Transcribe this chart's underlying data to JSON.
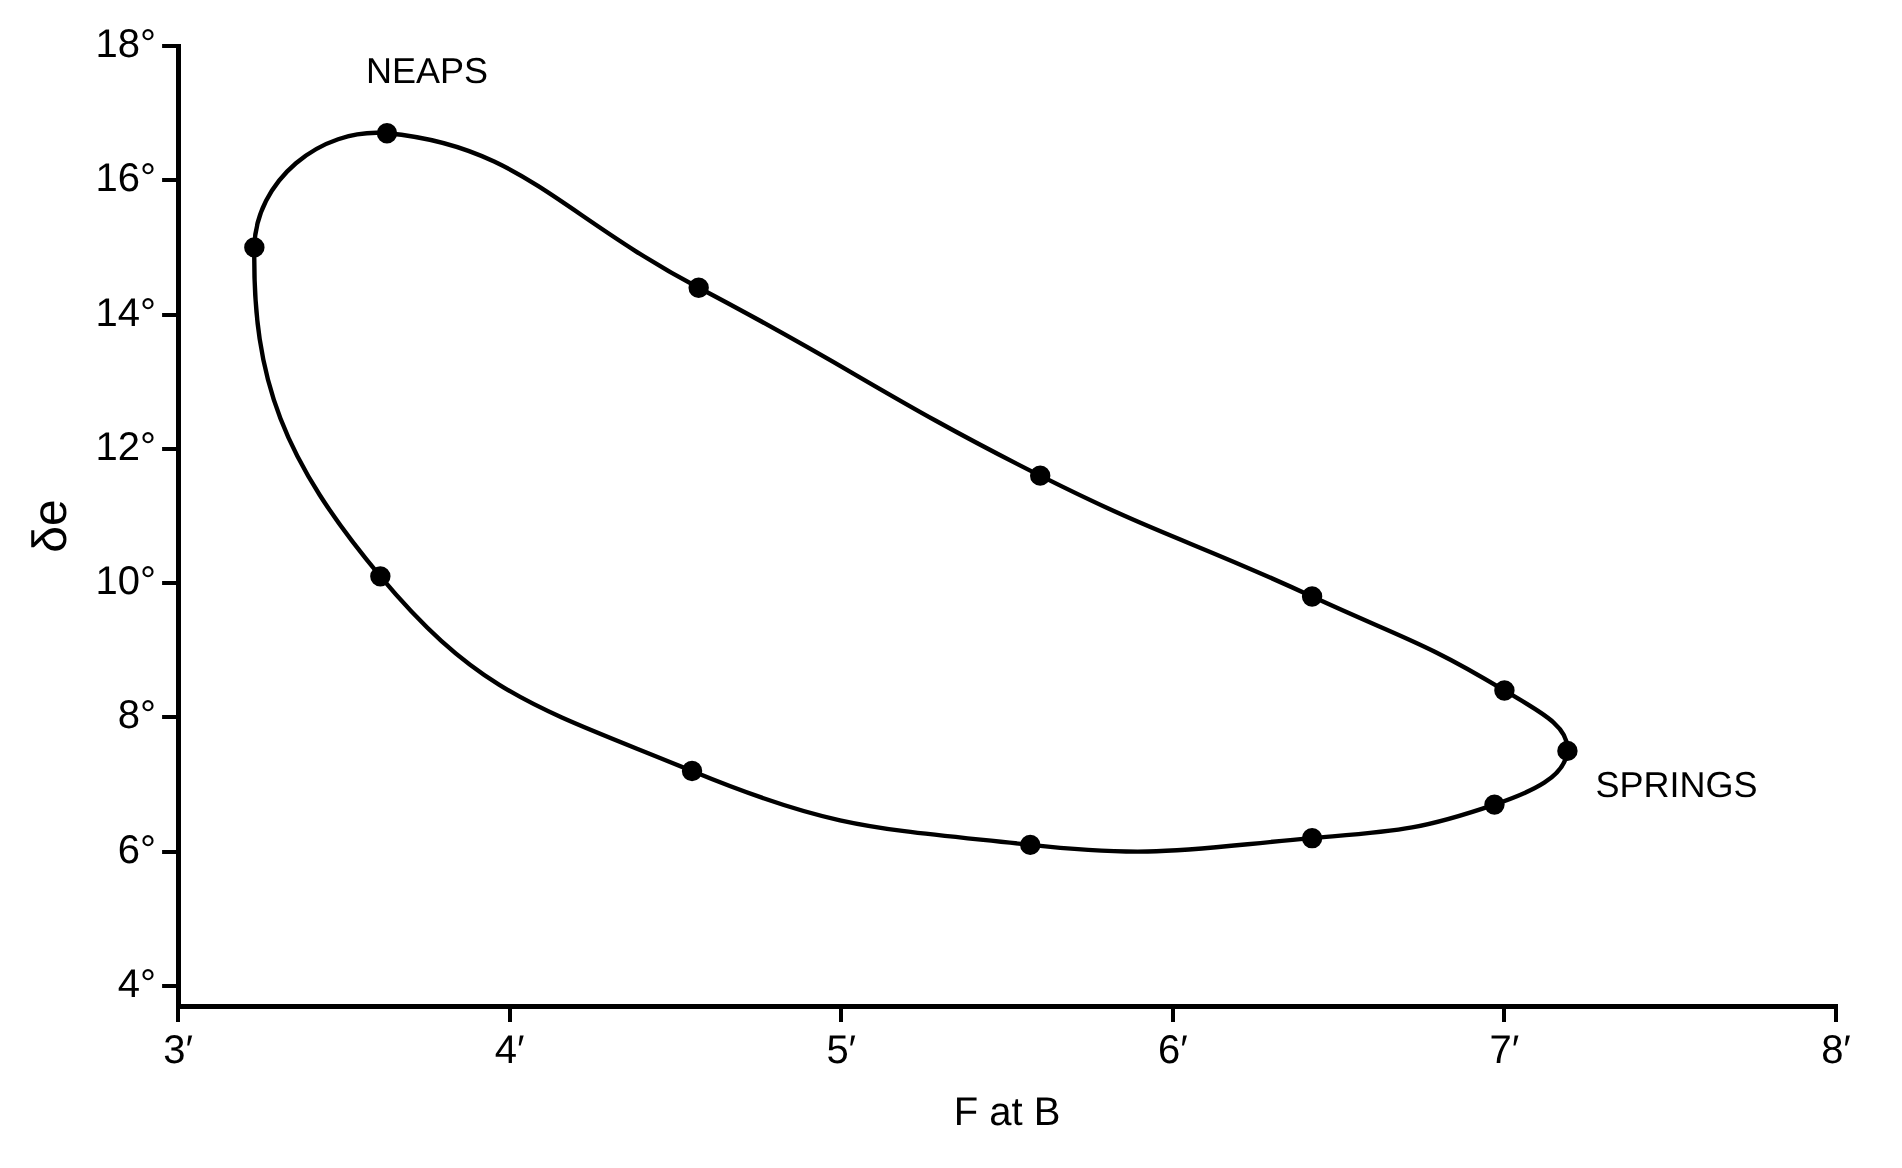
{
  "chart_data": {
    "type": "scatter",
    "xlabel": "F at B",
    "ylabel": "δe",
    "x": [
      3.23,
      3.63,
      4.57,
      5.6,
      6.42,
      7.0,
      7.19,
      6.97,
      6.42,
      5.57,
      4.55,
      3.61
    ],
    "series": [
      {
        "color": "#000000",
        "values": [
          15.0,
          16.7,
          14.4,
          11.6,
          9.8,
          8.4,
          7.5,
          6.7,
          6.2,
          6.1,
          7.2,
          10.1
        ]
      }
    ],
    "xlim": [
      3,
      8
    ],
    "xticks": [
      {
        "value": 3,
        "label": "3′"
      },
      {
        "value": 4,
        "label": "4′"
      },
      {
        "value": 5,
        "label": "5′"
      },
      {
        "value": 6,
        "label": "6′"
      },
      {
        "value": 7,
        "label": "7′"
      },
      {
        "value": 8,
        "label": "8′"
      }
    ],
    "ylim": [
      3.7,
      18
    ],
    "yticks": [
      {
        "value": 4,
        "label": "4°"
      },
      {
        "value": 6,
        "label": "6°"
      },
      {
        "value": 8,
        "label": "8°"
      },
      {
        "value": 10,
        "label": "10°"
      },
      {
        "value": 12,
        "label": "12°"
      },
      {
        "value": 14,
        "label": "14°"
      },
      {
        "value": 16,
        "label": "16°"
      },
      {
        "value": 18,
        "label": "18°"
      }
    ],
    "grid": false,
    "legend": false,
    "marker": "circle",
    "line_style": "solid",
    "annotations": [
      {
        "text": "NEAPS",
        "x": 3.63,
        "y": 16.7
      },
      {
        "text": "SPRINGS",
        "x": 7.19,
        "y": 7.5
      }
    ]
  }
}
